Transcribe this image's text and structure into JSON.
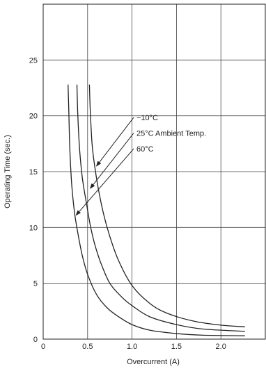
{
  "chart_data": {
    "type": "line",
    "title": "",
    "xlabel": "Overcurrent (A)",
    "ylabel": "Operating Time (sec.)",
    "xlim": [
      0,
      2.5
    ],
    "ylim": [
      0,
      30
    ],
    "x_ticks": [
      {
        "value": 0,
        "label": "0"
      },
      {
        "value": 0.5,
        "label": "0.5"
      },
      {
        "value": 1.0,
        "label": "1.0"
      },
      {
        "value": 1.5,
        "label": "1.5"
      },
      {
        "value": 2.0,
        "label": "2.0"
      }
    ],
    "y_ticks": [
      {
        "value": 0,
        "label": "0"
      },
      {
        "value": 5,
        "label": "5"
      },
      {
        "value": 10,
        "label": "10"
      },
      {
        "value": 15,
        "label": "15"
      },
      {
        "value": 20,
        "label": "20"
      },
      {
        "value": 25,
        "label": "25"
      }
    ],
    "grid": true,
    "series": [
      {
        "name": "−10°C",
        "x": [
          0.52,
          0.53,
          0.55,
          0.58,
          0.62,
          0.68,
          0.75,
          0.85,
          1.0,
          1.2,
          1.4,
          1.7,
          2.0,
          2.27
        ],
        "y": [
          22.8,
          20.5,
          17.5,
          15.5,
          13.5,
          11.2,
          9.2,
          7.0,
          4.8,
          3.2,
          2.3,
          1.6,
          1.25,
          1.1
        ]
      },
      {
        "name": "25°C Ambient Temp.",
        "x": [
          0.38,
          0.39,
          0.41,
          0.44,
          0.48,
          0.53,
          0.58,
          0.65,
          0.75,
          0.88,
          1.0,
          1.2,
          1.5,
          1.8,
          2.27
        ],
        "y": [
          22.8,
          20.0,
          17.0,
          14.5,
          12.5,
          10.2,
          8.5,
          6.8,
          5.0,
          3.8,
          3.0,
          2.0,
          1.3,
          0.9,
          0.7
        ]
      },
      {
        "name": "60°C",
        "x": [
          0.28,
          0.29,
          0.3,
          0.32,
          0.35,
          0.39,
          0.44,
          0.5,
          0.6,
          0.72,
          0.85,
          1.0,
          1.2,
          1.5,
          1.8,
          2.27
        ],
        "y": [
          22.8,
          20.0,
          17.0,
          14.0,
          11.5,
          9.5,
          7.5,
          5.8,
          4.0,
          2.8,
          2.0,
          1.3,
          0.8,
          0.5,
          0.35,
          0.3
        ]
      }
    ],
    "annotations": [
      {
        "text": "−10°C",
        "series": 0,
        "label_x": 1.05,
        "label_y": 19.6,
        "point_x": 0.6,
        "point_y": 15.5
      },
      {
        "text": "25°C Ambient Temp.",
        "series": 1,
        "label_x": 1.05,
        "label_y": 18.2,
        "point_x": 0.53,
        "point_y": 13.5
      },
      {
        "text": "60°C",
        "series": 2,
        "label_x": 1.05,
        "label_y": 16.8,
        "point_x": 0.37,
        "point_y": 11.1
      }
    ],
    "colors": {
      "line": "#222222",
      "grid": "#444444",
      "frame": "#222222",
      "text": "#222222"
    }
  }
}
